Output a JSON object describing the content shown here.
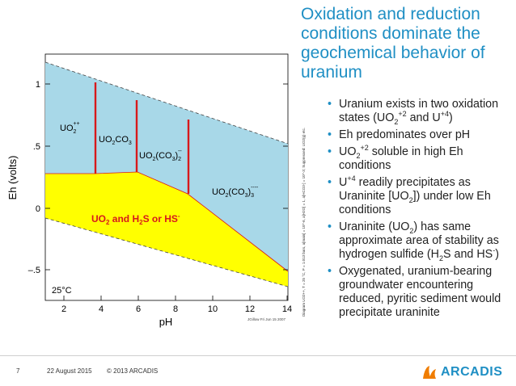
{
  "slide": {
    "title": "Oxidation and reduction conditions dominate the geochemical behavior of uranium",
    "bullets": [
      "Uranium exists in two oxidation states (UO2+2 and U+4)",
      "Eh predominates over pH",
      "UO2+2 soluble in high Eh conditions",
      "U+4 readily precipitates as Uraninite [UO2]) under low Eh conditions",
      "Uraninite (UO2) has same approximate area of stability as hydrogen sulfide (H2S and HS-)",
      "Oxygenated, uranium-bearing groundwater encountering reduced, pyritic sediment would precipitate uraninite"
    ],
    "side_caption": "Diagram UO2++, T = 25 °C, P = 1.013 bars, a[main] = 10^-6, a[H2O] = 1, a[HCO3-] = 10^-3; Suppressed: UO2(g) etc.",
    "footer": {
      "page": "7",
      "date": "22 August 2015",
      "copyright": "© 2013 ARCADIS"
    },
    "logo": "ARCADIS",
    "colors": {
      "accent": "#1f8fc4",
      "oxidized": "#a8d8e8",
      "reduced": "#ffff00",
      "boundary": "#d7191c"
    }
  },
  "diagram": {
    "xlabel": "pH",
    "ylabel": "Eh (volts)",
    "xticks": [
      "2",
      "4",
      "6",
      "8",
      "10",
      "12",
      "14"
    ],
    "yticks": [
      "1",
      ".5",
      "0",
      "–.5"
    ],
    "temperature": "25°C",
    "credit": "JGillow Fri Jun 15 2007",
    "fields": {
      "uo2pp": "UO2++",
      "uo2co3": "UO2CO3",
      "uo2co3_2": "UO2(CO3)2--",
      "uo2co3_3": "UO2(CO3)3----",
      "reduced": "UO2 and H2S or HS-"
    }
  },
  "chart_data": {
    "type": "phase-diagram",
    "xlabel": "pH",
    "ylabel": "Eh (volts)",
    "xlim": [
      0.5,
      14.5
    ],
    "ylim": [
      -0.75,
      1.2
    ],
    "water_upper_line": [
      [
        0.5,
        1.2
      ],
      [
        14.5,
        0.37
      ]
    ],
    "water_lower_line": [
      [
        0.5,
        -0.04
      ],
      [
        14.5,
        -0.87
      ]
    ],
    "redox_boundary": [
      [
        0.5,
        0.28
      ],
      [
        2.2,
        0.28
      ],
      [
        4.0,
        0.28
      ],
      [
        6.0,
        0.22
      ],
      [
        8.9,
        0.05
      ],
      [
        14.5,
        -0.45
      ]
    ],
    "vertical_boundaries_pH": [
      4.0,
      5.95,
      8.8
    ],
    "grid": false
  }
}
